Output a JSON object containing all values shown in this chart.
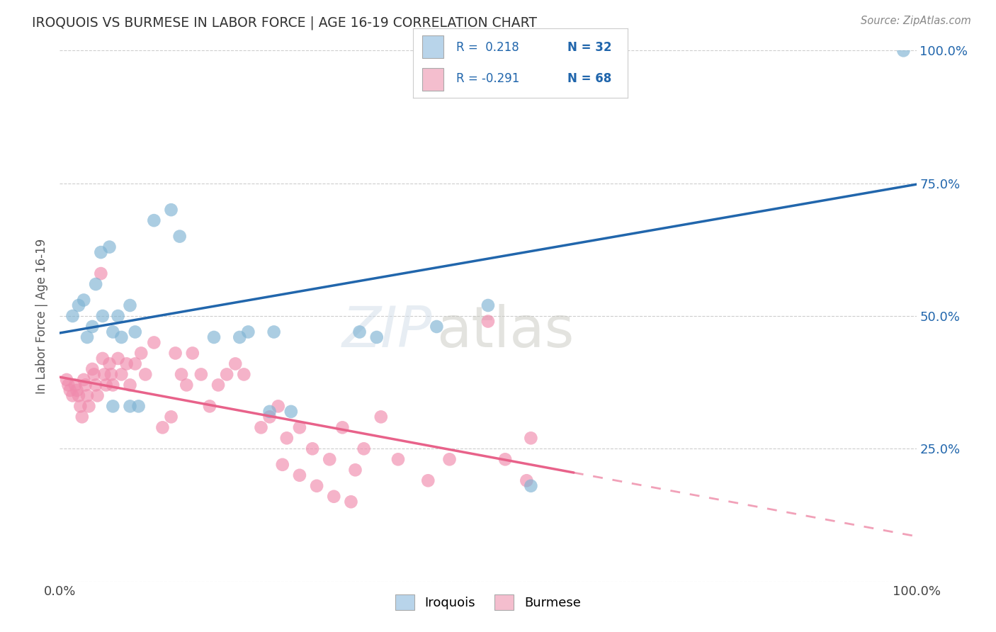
{
  "title": "IROQUOIS VS BURMESE IN LABOR FORCE | AGE 16-19 CORRELATION CHART",
  "source": "Source: ZipAtlas.com",
  "ylabel": "In Labor Force | Age 16-19",
  "xlim": [
    0,
    1.0
  ],
  "ylim": [
    0,
    1.0
  ],
  "iroquois_color": "#7fb3d3",
  "burmese_color": "#f08bad",
  "trendline1_color": "#2166ac",
  "trendline2_color": "#e8628a",
  "legend_color1": "#b8d4ea",
  "legend_color2": "#f4bece",
  "legend_text_color": "#2166ac",
  "grid_color": "#c8c8c8",
  "bg_color": "#ffffff",
  "iroquois_x": [
    0.015,
    0.05,
    0.082,
    0.022,
    0.028,
    0.032,
    0.038,
    0.042,
    0.048,
    0.058,
    0.062,
    0.068,
    0.072,
    0.088,
    0.11,
    0.13,
    0.14,
    0.18,
    0.21,
    0.22,
    0.245,
    0.25,
    0.27,
    0.35,
    0.37,
    0.44,
    0.5,
    0.062,
    0.082,
    0.092,
    0.55,
    0.985
  ],
  "iroquois_y": [
    0.5,
    0.5,
    0.52,
    0.52,
    0.53,
    0.46,
    0.48,
    0.56,
    0.62,
    0.63,
    0.47,
    0.5,
    0.46,
    0.47,
    0.68,
    0.7,
    0.65,
    0.46,
    0.46,
    0.47,
    0.32,
    0.47,
    0.32,
    0.47,
    0.46,
    0.48,
    0.52,
    0.33,
    0.33,
    0.33,
    0.18,
    1.0
  ],
  "burmese_x": [
    0.008,
    0.01,
    0.012,
    0.015,
    0.018,
    0.02,
    0.022,
    0.024,
    0.026,
    0.028,
    0.03,
    0.032,
    0.034,
    0.038,
    0.04,
    0.042,
    0.044,
    0.048,
    0.05,
    0.052,
    0.054,
    0.058,
    0.06,
    0.062,
    0.068,
    0.072,
    0.078,
    0.082,
    0.088,
    0.095,
    0.1,
    0.11,
    0.12,
    0.13,
    0.135,
    0.142,
    0.148,
    0.155,
    0.165,
    0.175,
    0.185,
    0.195,
    0.205,
    0.215,
    0.235,
    0.245,
    0.255,
    0.265,
    0.28,
    0.295,
    0.315,
    0.33,
    0.345,
    0.355,
    0.375,
    0.395,
    0.43,
    0.455,
    0.5,
    0.55,
    0.52,
    0.545,
    0.26,
    0.28,
    0.3,
    0.32,
    0.34
  ],
  "burmese_y": [
    0.38,
    0.37,
    0.36,
    0.35,
    0.37,
    0.36,
    0.35,
    0.33,
    0.31,
    0.38,
    0.37,
    0.35,
    0.33,
    0.4,
    0.39,
    0.37,
    0.35,
    0.58,
    0.42,
    0.39,
    0.37,
    0.41,
    0.39,
    0.37,
    0.42,
    0.39,
    0.41,
    0.37,
    0.41,
    0.43,
    0.39,
    0.45,
    0.29,
    0.31,
    0.43,
    0.39,
    0.37,
    0.43,
    0.39,
    0.33,
    0.37,
    0.39,
    0.41,
    0.39,
    0.29,
    0.31,
    0.33,
    0.27,
    0.29,
    0.25,
    0.23,
    0.29,
    0.21,
    0.25,
    0.31,
    0.23,
    0.19,
    0.23,
    0.49,
    0.27,
    0.23,
    0.19,
    0.22,
    0.2,
    0.18,
    0.16,
    0.15
  ],
  "trendline1_x0": 0.0,
  "trendline1_y0": 0.468,
  "trendline1_x1": 1.0,
  "trendline1_y1": 0.748,
  "trendline2_x0": 0.0,
  "trendline2_y0": 0.385,
  "trendline2_x1": 0.6,
  "trendline2_y1": 0.205,
  "trendline2_dash_x0": 0.6,
  "trendline2_dash_y0": 0.205,
  "trendline2_dash_x1": 1.0,
  "trendline2_dash_y1": 0.085
}
